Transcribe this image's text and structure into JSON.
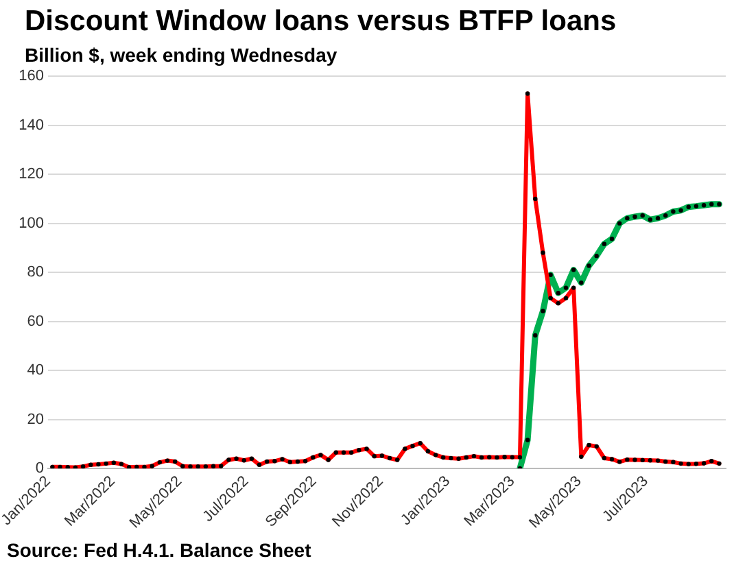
{
  "chart_data": {
    "type": "line",
    "title": "Discount Window loans versus BTFP loans",
    "subtitle": "Billion $, week ending Wednesday",
    "annotations": [
      "Source: Fed H.4.1. Balance Sheet"
    ],
    "x": [
      "2022-01-05",
      "2022-01-12",
      "2022-01-19",
      "2022-01-26",
      "2022-02-02",
      "2022-02-09",
      "2022-02-16",
      "2022-02-23",
      "2022-03-02",
      "2022-03-09",
      "2022-03-16",
      "2022-03-23",
      "2022-03-30",
      "2022-04-06",
      "2022-04-13",
      "2022-04-20",
      "2022-04-27",
      "2022-05-04",
      "2022-05-11",
      "2022-05-18",
      "2022-05-25",
      "2022-06-01",
      "2022-06-08",
      "2022-06-15",
      "2022-06-22",
      "2022-06-29",
      "2022-07-06",
      "2022-07-13",
      "2022-07-20",
      "2022-07-27",
      "2022-08-03",
      "2022-08-10",
      "2022-08-17",
      "2022-08-24",
      "2022-08-31",
      "2022-09-07",
      "2022-09-14",
      "2022-09-21",
      "2022-09-28",
      "2022-10-05",
      "2022-10-12",
      "2022-10-19",
      "2022-10-26",
      "2022-11-02",
      "2022-11-09",
      "2022-11-16",
      "2022-11-23",
      "2022-11-30",
      "2022-12-07",
      "2022-12-14",
      "2022-12-21",
      "2022-12-28",
      "2023-01-04",
      "2023-01-11",
      "2023-01-18",
      "2023-01-25",
      "2023-02-01",
      "2023-02-08",
      "2023-02-15",
      "2023-02-22",
      "2023-03-01",
      "2023-03-08",
      "2023-03-15",
      "2023-03-22",
      "2023-03-29",
      "2023-04-05",
      "2023-04-12",
      "2023-04-19",
      "2023-04-26",
      "2023-05-03",
      "2023-05-10",
      "2023-05-17",
      "2023-05-24",
      "2023-05-31",
      "2023-06-07",
      "2023-06-14",
      "2023-06-21",
      "2023-06-28",
      "2023-07-05",
      "2023-07-12",
      "2023-07-19",
      "2023-07-26",
      "2023-08-02",
      "2023-08-09",
      "2023-08-16",
      "2023-08-23",
      "2023-08-30",
      "2023-09-06"
    ],
    "series": [
      {
        "color": "#ff0000",
        "values": [
          0.6,
          0.6,
          0.5,
          0.4,
          0.8,
          1.5,
          1.7,
          2.0,
          2.3,
          1.8,
          0.5,
          0.6,
          0.6,
          1.0,
          2.5,
          3.2,
          2.8,
          0.9,
          0.8,
          0.8,
          0.8,
          0.9,
          1.0,
          3.5,
          4.0,
          3.3,
          4.0,
          1.5,
          2.8,
          3.0,
          3.8,
          2.6,
          2.8,
          3.0,
          4.5,
          5.5,
          3.5,
          6.5,
          6.5,
          6.5,
          7.5,
          8.0,
          5.0,
          5.2,
          4.2,
          3.5,
          8.0,
          9.2,
          10.3,
          7.0,
          5.5,
          4.5,
          4.2,
          4.0,
          4.5,
          5.0,
          4.5,
          4.6,
          4.5,
          4.7,
          4.6,
          4.6,
          152.9,
          110,
          88,
          69.5,
          67.4,
          69.5,
          73.7,
          4.8,
          9.5,
          9,
          4.2,
          3.8,
          2.7,
          3.6,
          3.5,
          3.4,
          3.3,
          3.2,
          2.8,
          2.6,
          2.0,
          1.8,
          1.9,
          2.1,
          3.0,
          2.0
        ]
      },
      {
        "color": "#00b050",
        "x": [
          "2023-03-08",
          "2023-03-15",
          "2023-03-22",
          "2023-03-29",
          "2023-04-05",
          "2023-04-12",
          "2023-04-19",
          "2023-04-26",
          "2023-05-03",
          "2023-05-10",
          "2023-05-17",
          "2023-05-24",
          "2023-05-31",
          "2023-06-07",
          "2023-06-14",
          "2023-06-21",
          "2023-06-28",
          "2023-07-05",
          "2023-07-12",
          "2023-07-19",
          "2023-07-26",
          "2023-08-02",
          "2023-08-09",
          "2023-08-16",
          "2023-08-23",
          "2023-08-30",
          "2023-09-06"
        ],
        "values": [
          0,
          11.6,
          54.3,
          64.2,
          79,
          71.6,
          73.7,
          81,
          75.8,
          82.7,
          86.7,
          91.6,
          93.7,
          100,
          102.1,
          102.7,
          103.2,
          101.5,
          102.1,
          103.2,
          104.8,
          105.3,
          106.7,
          107,
          107.4,
          107.8,
          107.8
        ]
      }
    ],
    "xlim": [
      "2022-01-01",
      "2023-09-12"
    ],
    "xticks": [
      {
        "value": "2022-01-01",
        "label": "Jan/2022"
      },
      {
        "value": "2022-03-01",
        "label": "Mar/2022"
      },
      {
        "value": "2022-05-01",
        "label": "May/2022"
      },
      {
        "value": "2022-07-01",
        "label": "Jul/2022"
      },
      {
        "value": "2022-09-01",
        "label": "Sep/2022"
      },
      {
        "value": "2022-11-01",
        "label": "Nov/2022"
      },
      {
        "value": "2023-01-01",
        "label": "Jan/2023"
      },
      {
        "value": "2023-03-01",
        "label": "Mar/2023"
      },
      {
        "value": "2023-05-01",
        "label": "May/2023"
      },
      {
        "value": "2023-07-01",
        "label": "Jul/2023"
      }
    ],
    "ylim": [
      0,
      160
    ],
    "yticks": [
      0,
      20,
      40,
      60,
      80,
      100,
      120,
      140,
      160
    ],
    "grid": "y",
    "legend": false,
    "marker": "circle",
    "line_style": "solid"
  }
}
